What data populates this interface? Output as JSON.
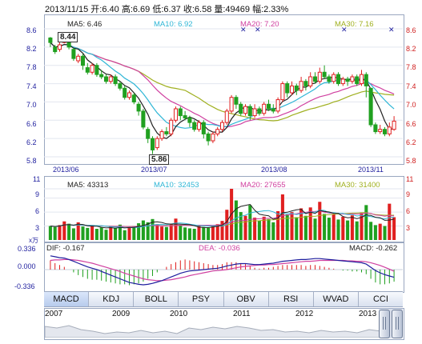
{
  "header": {
    "text": "2013/11/15 开:6.40 高:6.69 低:6.37 收:6.58 量:49469 幅:2.33%"
  },
  "price_panel": {
    "ma5_label": "MA5: 6.46",
    "ma10_label": "MA10: 6.92",
    "ma20_label": "MA20: 7.20",
    "ma30_label": "MA30: 7.16",
    "y_ticks": [
      "8.6",
      "8.2",
      "7.8",
      "7.4",
      "7.0",
      "6.6",
      "6.2",
      "5.8"
    ],
    "x_ticks": [
      "2013/06",
      "2013/07",
      "2013/08",
      "2013/11"
    ],
    "high_callout": "8.44",
    "low_callout": "5.86"
  },
  "volume_panel": {
    "ma5_label": "MA5: 43313",
    "ma10_label": "MA10: 32453",
    "ma20_label": "MA20: 27655",
    "ma30_label": "MA30: 31400",
    "y_ticks": [
      "11",
      "9",
      "6",
      "3"
    ],
    "unit_label": "x万"
  },
  "macd_panel": {
    "dif_label": "DIF: -0.167",
    "dea_label": "DEA: -0.036",
    "macd_label": "MACD: -0.262",
    "y_ticks": [
      "0.336",
      "0.000",
      "-0.336"
    ]
  },
  "tabs": [
    "MACD",
    "KDJ",
    "BOLL",
    "PSY",
    "OBV",
    "RSI",
    "WVAD",
    "CCI"
  ],
  "active_tab": "MACD",
  "navigator": {
    "years": [
      "2007",
      "2009",
      "2010",
      "2011",
      "2012",
      "2013"
    ]
  },
  "colors": {
    "up": "#e02020",
    "down": "#20a020",
    "ma5": "#222222",
    "ma10": "#2fb6d6",
    "ma20": "#d040a0",
    "ma30": "#a0b020",
    "axis_left": "#1e1e9e",
    "axis_right": "#d02020"
  },
  "chart_data": {
    "type": "candlestick",
    "y_range": [
      5.8,
      8.6
    ],
    "candles": [
      [
        8.4,
        8.3,
        8.42,
        8.2
      ],
      [
        8.2,
        8.1,
        8.25,
        8.05
      ],
      [
        8.15,
        8.25,
        8.3,
        8.1
      ],
      [
        8.3,
        8.38,
        8.44,
        8.28
      ],
      [
        8.35,
        8.2,
        8.38,
        8.15
      ],
      [
        8.15,
        7.95,
        8.18,
        7.9
      ],
      [
        7.9,
        8.0,
        8.05,
        7.85
      ],
      [
        8.0,
        7.8,
        8.05,
        7.7
      ],
      [
        7.75,
        7.65,
        7.85,
        7.6
      ],
      [
        7.65,
        7.8,
        7.85,
        7.6
      ],
      [
        7.8,
        7.6,
        7.85,
        7.55
      ],
      [
        7.6,
        7.55,
        7.7,
        7.5
      ],
      [
        7.55,
        7.45,
        7.6,
        7.4
      ],
      [
        7.45,
        7.55,
        7.6,
        7.4
      ],
      [
        7.55,
        7.4,
        7.6,
        7.35
      ],
      [
        7.4,
        7.3,
        7.45,
        7.25
      ],
      [
        7.3,
        7.1,
        7.35,
        7.05
      ],
      [
        7.1,
        7.2,
        7.25,
        7.05
      ],
      [
        7.15,
        7.0,
        7.2,
        6.95
      ],
      [
        6.95,
        6.8,
        7.0,
        6.7
      ],
      [
        6.8,
        6.45,
        6.85,
        6.4
      ],
      [
        6.4,
        6.2,
        6.45,
        6.1
      ],
      [
        6.2,
        5.95,
        6.25,
        5.86
      ],
      [
        6.0,
        6.2,
        6.25,
        5.95
      ],
      [
        6.2,
        6.35,
        6.4,
        6.15
      ],
      [
        6.35,
        6.3,
        6.45,
        6.25
      ],
      [
        6.3,
        6.6,
        6.65,
        6.25
      ],
      [
        6.6,
        6.85,
        6.9,
        6.55
      ],
      [
        6.85,
        6.7,
        6.9,
        6.6
      ],
      [
        6.7,
        6.65,
        6.8,
        6.6
      ],
      [
        6.65,
        6.55,
        6.7,
        6.45
      ],
      [
        6.55,
        6.4,
        6.6,
        6.35
      ],
      [
        6.4,
        6.55,
        6.6,
        6.35
      ],
      [
        6.55,
        6.3,
        6.6,
        6.2
      ],
      [
        6.3,
        6.15,
        6.35,
        6.05
      ],
      [
        6.15,
        6.3,
        6.35,
        6.1
      ],
      [
        6.3,
        6.4,
        6.45,
        6.25
      ],
      [
        6.4,
        6.55,
        6.6,
        6.35
      ],
      [
        6.55,
        6.8,
        6.85,
        6.5
      ],
      [
        6.8,
        7.1,
        7.15,
        6.75
      ],
      [
        7.1,
        6.95,
        7.15,
        6.85
      ],
      [
        6.95,
        6.75,
        7.0,
        6.7
      ],
      [
        6.75,
        6.9,
        6.95,
        6.7
      ],
      [
        6.9,
        6.7,
        6.95,
        6.6
      ],
      [
        6.7,
        6.85,
        6.95,
        6.65
      ],
      [
        6.85,
        6.75,
        6.9,
        6.7
      ],
      [
        6.75,
        6.95,
        7.0,
        6.7
      ],
      [
        6.95,
        6.85,
        7.05,
        6.8
      ],
      [
        6.85,
        6.8,
        6.95,
        6.75
      ],
      [
        6.8,
        7.05,
        7.1,
        6.75
      ],
      [
        7.05,
        7.4,
        7.45,
        7.0
      ],
      [
        7.4,
        7.2,
        7.45,
        7.1
      ],
      [
        7.2,
        7.35,
        7.45,
        7.15
      ],
      [
        7.35,
        7.25,
        7.4,
        7.15
      ],
      [
        7.25,
        7.45,
        7.55,
        7.2
      ],
      [
        7.45,
        7.35,
        7.5,
        7.25
      ],
      [
        7.35,
        7.55,
        7.65,
        7.3
      ],
      [
        7.55,
        7.45,
        7.65,
        7.4
      ],
      [
        7.45,
        7.65,
        7.75,
        7.4
      ],
      [
        7.65,
        7.55,
        7.8,
        7.5
      ],
      [
        7.55,
        7.45,
        7.6,
        7.4
      ],
      [
        7.45,
        7.6,
        7.65,
        7.4
      ],
      [
        7.6,
        7.4,
        7.65,
        7.35
      ],
      [
        7.4,
        7.5,
        7.55,
        7.35
      ],
      [
        7.5,
        7.45,
        7.55,
        7.35
      ],
      [
        7.45,
        7.55,
        7.6,
        7.4
      ],
      [
        7.55,
        7.4,
        7.6,
        7.35
      ],
      [
        7.4,
        7.6,
        7.7,
        7.35
      ],
      [
        7.6,
        7.35,
        7.65,
        7.1
      ],
      [
        7.3,
        6.5,
        7.3,
        6.45
      ],
      [
        6.5,
        6.35,
        6.55,
        6.3
      ],
      [
        6.35,
        6.4,
        6.5,
        6.3
      ],
      [
        6.4,
        6.3,
        6.45,
        6.25
      ],
      [
        6.3,
        6.45,
        6.55,
        6.25
      ],
      [
        6.4,
        6.58,
        6.69,
        6.37
      ]
    ],
    "volume": [
      3.0,
      2.8,
      3.2,
      4.0,
      3.5,
      2.5,
      3.8,
      2.9,
      2.6,
      3.1,
      2.4,
      2.7,
      2.2,
      2.9,
      2.5,
      3.3,
      2.1,
      2.6,
      3.0,
      3.6,
      4.2,
      3.8,
      4.5,
      3.4,
      2.9,
      2.8,
      3.5,
      4.6,
      3.2,
      2.7,
      2.5,
      2.4,
      3.0,
      2.8,
      2.6,
      3.1,
      3.4,
      4.1,
      6.5,
      11.0,
      8.5,
      6.0,
      5.2,
      7.5,
      4.8,
      4.2,
      5.0,
      4.5,
      3.8,
      6.2,
      9.8,
      5.5,
      6.0,
      4.9,
      6.8,
      5.2,
      7.0,
      4.6,
      8.2,
      5.6,
      4.8,
      5.5,
      4.4,
      5.0,
      4.2,
      5.3,
      4.0,
      5.8,
      7.5,
      3.9,
      3.2,
      3.5,
      3.0,
      7.8,
      4.9
    ],
    "macd": {
      "dif": [
        0.3,
        0.28,
        0.26,
        0.25,
        0.22,
        0.18,
        0.14,
        0.1,
        0.06,
        0.03,
        0.0,
        -0.04,
        -0.08,
        -0.12,
        -0.16,
        -0.2,
        -0.24,
        -0.28,
        -0.3,
        -0.32,
        -0.33,
        -0.32,
        -0.3,
        -0.27,
        -0.24,
        -0.2,
        -0.16,
        -0.12,
        -0.08,
        -0.05,
        -0.03,
        -0.02,
        -0.01,
        0.0,
        0.01,
        0.02,
        0.03,
        0.05,
        0.08,
        0.1,
        0.12,
        0.13,
        0.13,
        0.12,
        0.11,
        0.11,
        0.12,
        0.13,
        0.14,
        0.16,
        0.18,
        0.19,
        0.2,
        0.21,
        0.22,
        0.22,
        0.23,
        0.24,
        0.24,
        0.23,
        0.22,
        0.21,
        0.2,
        0.19,
        0.18,
        0.17,
        0.16,
        0.15,
        0.12,
        0.05,
        -0.02,
        -0.07,
        -0.11,
        -0.14,
        -0.167
      ],
      "dea": [
        0.2,
        0.21,
        0.21,
        0.22,
        0.22,
        0.21,
        0.2,
        0.18,
        0.16,
        0.14,
        0.11,
        0.08,
        0.05,
        0.02,
        -0.01,
        -0.04,
        -0.08,
        -0.11,
        -0.14,
        -0.17,
        -0.2,
        -0.22,
        -0.23,
        -0.24,
        -0.24,
        -0.23,
        -0.22,
        -0.2,
        -0.18,
        -0.16,
        -0.13,
        -0.11,
        -0.09,
        -0.07,
        -0.05,
        -0.03,
        -0.02,
        -0.01,
        0.0,
        0.02,
        0.04,
        0.06,
        0.07,
        0.08,
        0.09,
        0.1,
        0.1,
        0.11,
        0.11,
        0.12,
        0.13,
        0.14,
        0.15,
        0.16,
        0.17,
        0.18,
        0.18,
        0.19,
        0.2,
        0.2,
        0.2,
        0.2,
        0.2,
        0.2,
        0.19,
        0.19,
        0.18,
        0.18,
        0.17,
        0.15,
        0.12,
        0.09,
        0.05,
        0.01,
        -0.036
      ],
      "hist": [
        0.2,
        0.14,
        0.1,
        0.06,
        0.0,
        -0.06,
        -0.12,
        -0.16,
        -0.2,
        -0.22,
        -0.22,
        -0.24,
        -0.26,
        -0.28,
        -0.3,
        -0.32,
        -0.32,
        -0.34,
        -0.32,
        -0.3,
        -0.26,
        -0.2,
        -0.14,
        -0.06,
        0.0,
        0.06,
        0.12,
        0.16,
        0.2,
        0.22,
        0.2,
        0.18,
        0.16,
        0.14,
        0.12,
        0.1,
        0.1,
        0.12,
        0.16,
        0.16,
        0.16,
        0.14,
        0.12,
        0.08,
        0.04,
        0.02,
        0.04,
        0.04,
        0.06,
        0.08,
        0.1,
        0.1,
        0.1,
        0.1,
        0.1,
        0.08,
        0.1,
        0.1,
        0.08,
        0.06,
        0.04,
        0.02,
        0.0,
        -0.02,
        -0.02,
        -0.04,
        -0.04,
        -0.06,
        -0.1,
        -0.2,
        -0.28,
        -0.32,
        -0.32,
        -0.3,
        -0.262
      ]
    }
  }
}
